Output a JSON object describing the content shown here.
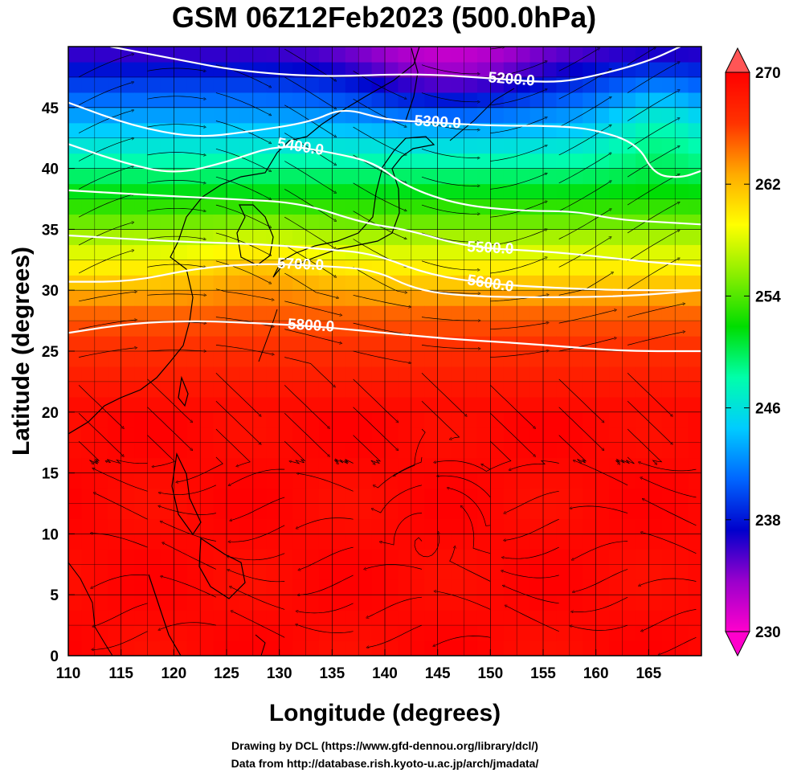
{
  "chart_data": {
    "type": "heatmap",
    "title": "GSM 06Z12Feb2023 (500.0hPa)",
    "xlabel": "Longitude (degrees)",
    "ylabel": "Latitude  (degrees)",
    "xlim": [
      110,
      170
    ],
    "ylim": [
      0,
      50
    ],
    "x_ticks": [
      110,
      115,
      120,
      125,
      130,
      135,
      140,
      145,
      150,
      155,
      160,
      165
    ],
    "y_ticks": [
      0,
      5,
      10,
      15,
      20,
      25,
      30,
      35,
      40,
      45
    ],
    "grid": true,
    "colorbar": {
      "min": 230,
      "max": 270,
      "ticks": [
        230,
        238,
        246,
        254,
        262,
        270
      ],
      "placement": "right",
      "colors": [
        "#ff00cc",
        "#9900cc",
        "#0000cc",
        "#0066ff",
        "#00ccff",
        "#00ffaa",
        "#00dd00",
        "#88ee00",
        "#ffff00",
        "#ffaa00",
        "#ff3300",
        "#ff0000"
      ]
    },
    "contours": [
      {
        "value": 5200,
        "label": "5200.0",
        "points": [
          [
            114,
            50
          ],
          [
            120,
            49
          ],
          [
            126,
            48
          ],
          [
            134,
            47.5
          ],
          [
            143,
            47.8
          ],
          [
            150,
            47.4
          ],
          [
            156,
            47
          ],
          [
            160,
            47.6
          ],
          [
            165,
            48.8
          ],
          [
            168,
            50
          ]
        ]
      },
      {
        "value": 5300,
        "label": "5300.0",
        "points": [
          [
            110,
            45.4
          ],
          [
            116,
            43.5
          ],
          [
            122,
            42.5
          ],
          [
            127,
            43
          ],
          [
            133,
            43.8
          ],
          [
            136,
            45
          ],
          [
            140,
            44
          ],
          [
            144,
            43.8
          ],
          [
            150,
            43.5
          ],
          [
            156,
            43.5
          ],
          [
            160,
            43.2
          ],
          [
            164,
            42
          ],
          [
            165.5,
            39.5
          ],
          [
            168,
            39.2
          ],
          [
            170,
            39.8
          ]
        ]
      },
      {
        "value": 5400,
        "label": "5400.0",
        "points": [
          [
            110,
            42
          ],
          [
            115,
            40.5
          ],
          [
            120,
            39.5
          ],
          [
            125,
            40.5
          ],
          [
            130,
            42
          ],
          [
            135,
            41.3
          ],
          [
            139,
            40.5
          ],
          [
            142,
            38.5
          ],
          [
            147,
            37
          ],
          [
            153,
            36.5
          ],
          [
            158,
            36.5
          ],
          [
            162,
            35.8
          ],
          [
            166,
            35.6
          ],
          [
            170,
            35.4
          ]
        ]
      },
      {
        "value": 5500,
        "label": "5500.0",
        "points": [
          [
            110,
            38.2
          ],
          [
            118,
            37.8
          ],
          [
            125,
            37.5
          ],
          [
            132,
            37.2
          ],
          [
            138,
            35.5
          ],
          [
            142,
            35
          ],
          [
            148,
            33.5
          ],
          [
            155,
            33.2
          ],
          [
            160,
            32.8
          ],
          [
            165,
            32.3
          ],
          [
            170,
            32
          ]
        ]
      },
      {
        "value": 5600,
        "label": "5600.0",
        "points": [
          [
            110,
            34.5
          ],
          [
            120,
            34
          ],
          [
            128,
            33.8
          ],
          [
            134,
            33.4
          ],
          [
            139,
            33
          ],
          [
            144,
            31.3
          ],
          [
            150,
            30.5
          ],
          [
            156,
            30.2
          ],
          [
            162,
            30
          ],
          [
            170,
            30
          ]
        ]
      },
      {
        "value": 5700,
        "label": "5700.0",
        "points": [
          [
            110,
            30.7
          ],
          [
            116,
            30.7
          ],
          [
            122,
            31.8
          ],
          [
            128,
            32.2
          ],
          [
            134,
            32
          ],
          [
            139,
            31.7
          ],
          [
            143,
            30
          ],
          [
            148,
            29.5
          ],
          [
            155,
            29.4
          ],
          [
            163,
            29.5
          ],
          [
            170,
            30
          ]
        ]
      },
      {
        "value": 5800,
        "label": "5800.0",
        "points": [
          [
            110,
            26.5
          ],
          [
            116,
            27.3
          ],
          [
            122,
            27.5
          ],
          [
            128,
            27.3
          ],
          [
            134,
            27
          ],
          [
            140,
            26.5
          ],
          [
            146,
            26
          ],
          [
            152,
            25.7
          ],
          [
            158,
            25.3
          ],
          [
            163,
            25
          ],
          [
            170,
            25
          ]
        ]
      }
    ]
  },
  "credits": {
    "line1": "Drawing by DCL (https://www.gfd-dennou.org/library/dcl/)",
    "line2": "Data from http://database.rish.kyoto-u.ac.jp/arch/jmadata/"
  }
}
